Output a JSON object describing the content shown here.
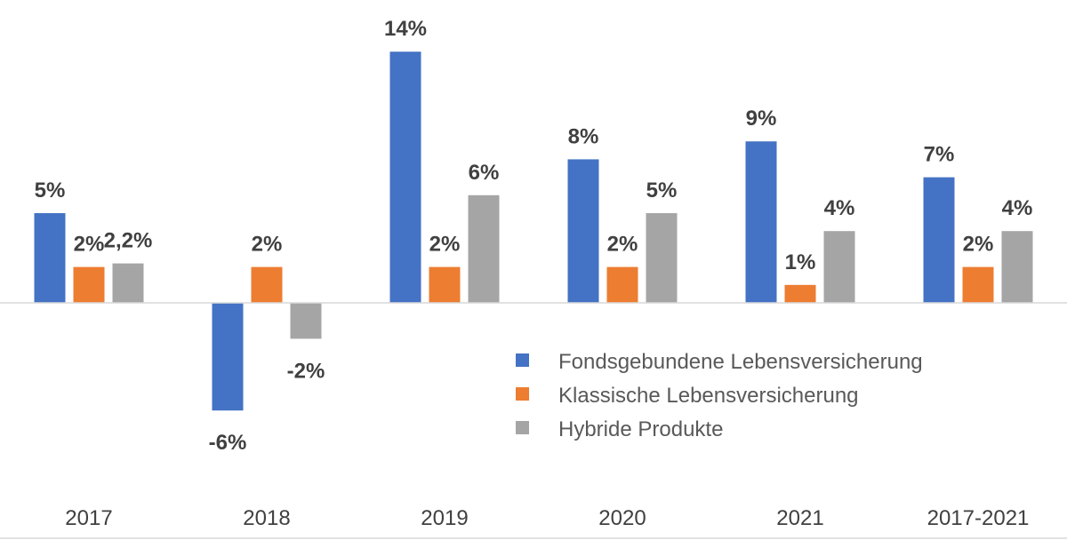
{
  "chart_data": {
    "type": "bar",
    "categories": [
      "2017",
      "2018",
      "2019",
      "2020",
      "2021",
      "2017-2021"
    ],
    "series": [
      {
        "name": "Fondsgebundene Lebensversicherung",
        "values": [
          5,
          -6,
          14,
          8,
          9,
          7
        ],
        "labels": [
          "5%",
          "-6%",
          "14%",
          "8%",
          "9%",
          "7%"
        ],
        "color": "#4472C4"
      },
      {
        "name": "Klassische Lebensversicherung",
        "values": [
          2,
          2,
          2,
          2,
          1,
          2
        ],
        "labels": [
          "2%",
          "2%",
          "2%",
          "2%",
          "1%",
          "2%"
        ],
        "color": "#ED7D31"
      },
      {
        "name": "Hybride Produkte",
        "values": [
          2.2,
          -2,
          6,
          5,
          4,
          4
        ],
        "labels": [
          "2,2%",
          "-2%",
          "6%",
          "5%",
          "4%",
          "4%"
        ],
        "color": "#A5A5A5"
      }
    ],
    "ylim": [
      -6,
      14
    ],
    "grid": false,
    "legend_position": "bottom-right-inside",
    "zero_line_color": "#D9D9D9",
    "axis_line_color": "#D9D9D9"
  }
}
